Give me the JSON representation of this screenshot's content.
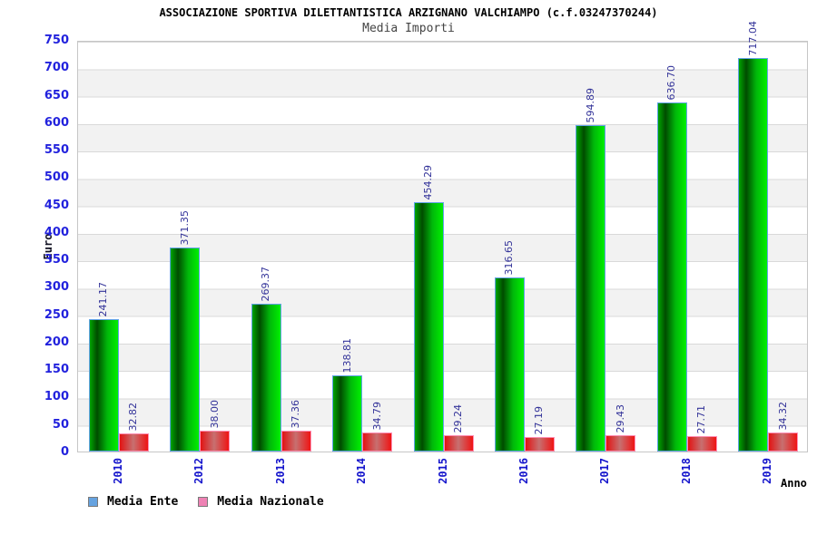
{
  "header": {
    "title": "ASSOCIAZIONE SPORTIVA DILETTANTISTICA ARZIGNANO VALCHIAMPO (c.f.03247370244)",
    "subtitle": "Media Importi"
  },
  "chart_data": {
    "type": "bar",
    "title": "Media Importi",
    "categories": [
      "2010",
      "2012",
      "2013",
      "2014",
      "2015",
      "2016",
      "2017",
      "2018",
      "2019"
    ],
    "series": [
      {
        "name": "Media Ente",
        "values": [
          241.17,
          371.35,
          269.37,
          138.81,
          454.29,
          316.65,
          594.89,
          636.7,
          717.04
        ],
        "fill": "green vertical-cylinder gradient",
        "border_color": "#63a3e8"
      },
      {
        "name": "Media Nazionale",
        "values": [
          32.82,
          38.0,
          37.36,
          34.79,
          29.24,
          27.19,
          29.43,
          27.71,
          34.32
        ],
        "fill": "red vertical-cylinder gradient",
        "border_color": "#ff8fb4"
      }
    ],
    "xlabel": "Anno",
    "ylabel": "Euro",
    "ylim": [
      0,
      750
    ],
    "ytick_step": 50,
    "yticks": [
      0,
      50,
      100,
      150,
      200,
      250,
      300,
      350,
      400,
      450,
      500,
      550,
      600,
      650,
      700,
      750
    ],
    "grid": "horizontal gridlines every 50, alternating white/gray 50-unit bands",
    "legend_position": "bottom-left",
    "value_labels": "rotated 90deg above each bar, 2 decimals"
  },
  "legend": {
    "items": [
      {
        "label": "Media Ente",
        "swatch_fill": "#66a3e0",
        "swatch_border": "#7a7a7a"
      },
      {
        "label": "Media Nazionale",
        "swatch_fill": "#ee82b4",
        "swatch_border": "#7a7a7a"
      }
    ]
  },
  "colors": {
    "ytick_label": "#2222dd",
    "xtick_label": "#1414cc",
    "bar_value_label": "#333399",
    "subtitle": "#444444",
    "gridline": "#d9d9d9",
    "band_gray": "#f2f2f2",
    "plot_border": "#c6c6c6"
  }
}
